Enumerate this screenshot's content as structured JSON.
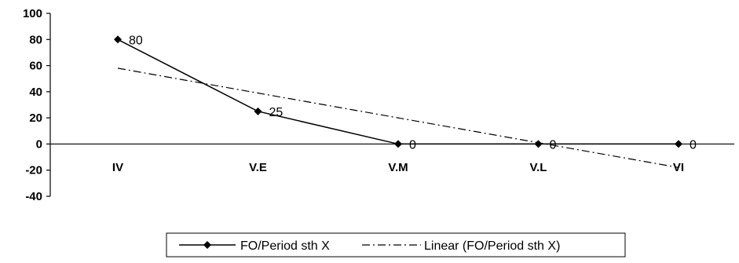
{
  "chart_data": {
    "type": "line",
    "categories": [
      "IV",
      "V.E",
      "V.M",
      "V.L",
      "VI"
    ],
    "series": [
      {
        "name": "FO/Period sth X",
        "values": [
          80,
          25,
          0,
          0,
          0
        ],
        "marker": "diamond",
        "line_style": "solid",
        "color": "#000000",
        "data_labels": [
          "80",
          "25",
          "0",
          "0",
          "0"
        ]
      },
      {
        "name": "Linear (FO/Period sth X)",
        "values": [
          58,
          39,
          20,
          1,
          -18
        ],
        "line_style": "dash-dot",
        "color": "#000000"
      }
    ],
    "yticks": [
      "100",
      "80",
      "60",
      "40",
      "20",
      "0",
      "-20",
      "-40"
    ],
    "ylim": [
      -40,
      100
    ],
    "grid": false,
    "legend_position": "bottom"
  }
}
